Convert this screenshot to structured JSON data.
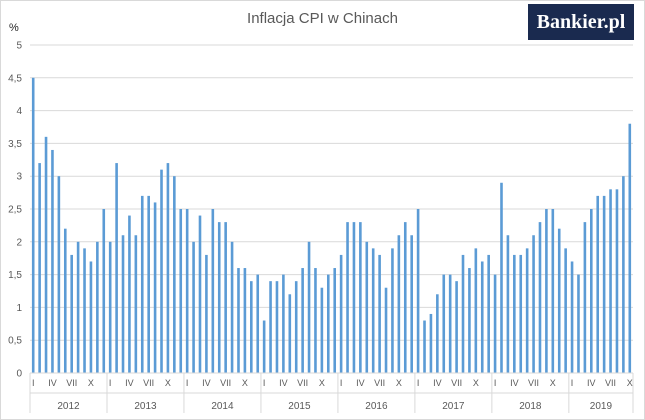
{
  "chart_data": {
    "type": "bar",
    "title": "Inflacja CPI w Chinach",
    "ylabel": "%",
    "ylim": [
      0,
      5
    ],
    "yticks": [
      "0",
      "0,5",
      "1",
      "1,5",
      "2",
      "2,5",
      "3",
      "3,5",
      "4",
      "4,5",
      "5"
    ],
    "grid": true,
    "bar_color": "#5b9bd5",
    "month_labels": [
      "I",
      "IV",
      "VII",
      "X"
    ],
    "years": [
      "2012",
      "2013",
      "2014",
      "2015",
      "2016",
      "2017",
      "2018",
      "2019"
    ],
    "values": [
      4.5,
      3.2,
      3.6,
      3.4,
      3.0,
      2.2,
      1.8,
      2.0,
      1.9,
      1.7,
      2.0,
      2.5,
      2.0,
      3.2,
      2.1,
      2.4,
      2.1,
      2.7,
      2.7,
      2.6,
      3.1,
      3.2,
      3.0,
      2.5,
      2.5,
      2.0,
      2.4,
      1.8,
      2.5,
      2.3,
      2.3,
      2.0,
      1.6,
      1.6,
      1.4,
      1.5,
      0.8,
      1.4,
      1.4,
      1.5,
      1.2,
      1.4,
      1.6,
      2.0,
      1.6,
      1.3,
      1.5,
      1.6,
      1.8,
      2.3,
      2.3,
      2.3,
      2.0,
      1.9,
      1.8,
      1.3,
      1.9,
      2.1,
      2.3,
      2.1,
      2.5,
      0.8,
      0.9,
      1.2,
      1.5,
      1.5,
      1.4,
      1.8,
      1.6,
      1.9,
      1.7,
      1.8,
      1.5,
      2.9,
      2.1,
      1.8,
      1.8,
      1.9,
      2.1,
      2.3,
      2.5,
      2.5,
      2.2,
      1.9,
      1.7,
      1.5,
      2.3,
      2.5,
      2.7,
      2.7,
      2.8,
      2.8,
      3.0,
      3.8
    ]
  },
  "logo_text": "Bankier.pl"
}
